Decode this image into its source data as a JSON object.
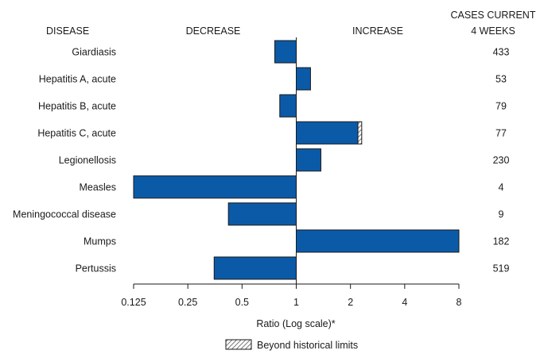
{
  "chart_data": {
    "type": "bar",
    "orientation": "horizontal",
    "scale": "log2",
    "xlabel": "Ratio (Log scale)*",
    "xlim": [
      0.125,
      8
    ],
    "xticks": [
      "0.125",
      "0.25",
      "0.5",
      "1",
      "2",
      "4",
      "8"
    ],
    "headers": {
      "disease": "DISEASE",
      "decrease": "DECREASE",
      "increase": "INCREASE",
      "cases_line1": "CASES CURRENT",
      "cases_line2": "4 WEEKS"
    },
    "legend": {
      "label": "Beyond historical limits",
      "placement": "bottom-center"
    },
    "colors": {
      "bar": "#0a5aa8",
      "bar_stroke": "#1a1a1a",
      "hatch": "#555555"
    },
    "categories": [
      "Giardiasis",
      "Hepatitis A, acute",
      "Hepatitis B, acute",
      "Hepatitis C, acute",
      "Legionellosis",
      "Measles",
      "Meningococcal disease",
      "Mumps",
      "Pertussis"
    ],
    "values": [
      0.76,
      1.2,
      0.81,
      2.2,
      1.37,
      0.125,
      0.42,
      8,
      0.35
    ],
    "beyond_limits": [
      0,
      0,
      0,
      0.07,
      0,
      0,
      0,
      0,
      0
    ],
    "cases": [
      "433",
      "53",
      "79",
      "77",
      "230",
      "4",
      "9",
      "182",
      "519"
    ]
  }
}
